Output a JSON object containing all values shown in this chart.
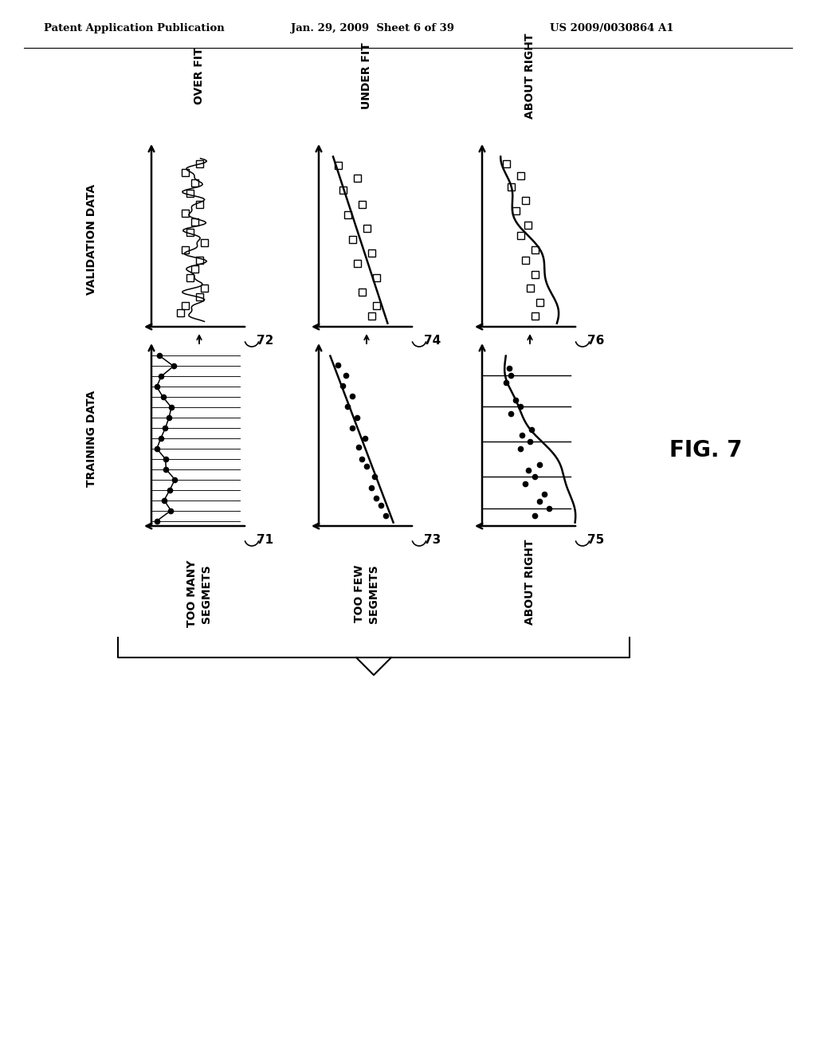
{
  "bg_color": "#ffffff",
  "header_left": "Patent Application Publication",
  "header_mid": "Jan. 29, 2009  Sheet 6 of 39",
  "header_right": "US 2009/0030864 A1",
  "fig_label": "FIG. 7",
  "top_col_labels": [
    "OVER FIT",
    "UNDER FIT",
    "ABOUT RIGHT"
  ],
  "bot_col_labels": [
    "TOO MANY\nSEGMETS",
    "TOO FEW\nSEGMETS",
    "ABOUT RIGHT"
  ],
  "row_label_top": "VALIDATION DATA",
  "row_label_bottom": "TRAINING DATA",
  "chart_numbers_top": [
    "72",
    "74",
    "76"
  ],
  "chart_numbers_bottom": [
    "71",
    "73",
    "75"
  ]
}
